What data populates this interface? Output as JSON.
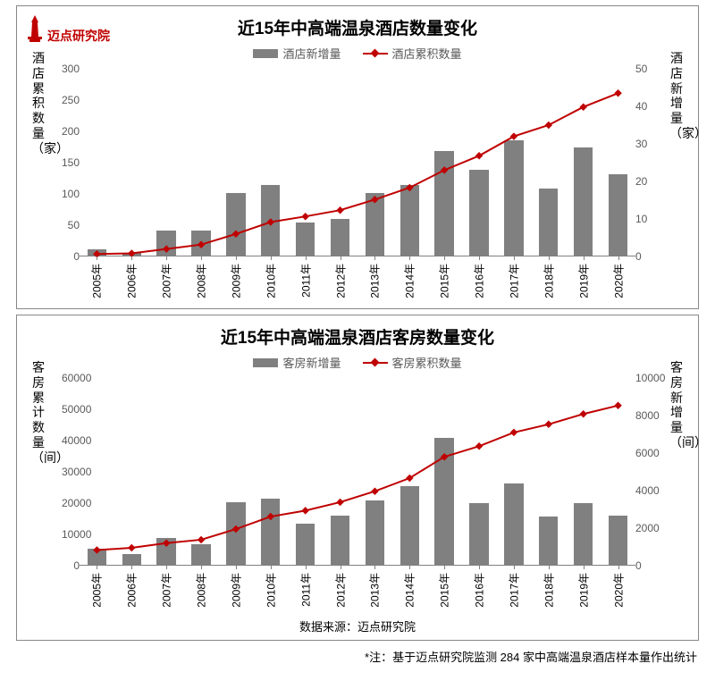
{
  "logo_text": "迈点研究院",
  "footnote": "*注：基于迈点研究院监测 284 家中高端温泉酒店样本量作出统计",
  "source_label": "数据来源：迈点研究院",
  "colors": {
    "bar": "#808080",
    "line": "#c00000",
    "axis": "#808080",
    "text": "#000000",
    "legend_text": "#595959",
    "background": "#ffffff"
  },
  "chart1": {
    "title": "近15年中高端温泉酒店数量变化",
    "legend_bar": "酒店新增量",
    "legend_line": "酒店累积数量",
    "y_left_label": "酒店累积数量（家）",
    "y_right_label": "酒店新增量（家）",
    "categories": [
      "2005年",
      "2006年",
      "2007年",
      "2008年",
      "2009年",
      "2010年",
      "2011年",
      "2012年",
      "2013年",
      "2014年",
      "2015年",
      "2016年",
      "2017年",
      "2018年",
      "2019年",
      "2020年"
    ],
    "bar_values": [
      2,
      1,
      7,
      7,
      17,
      19,
      9,
      10,
      17,
      19,
      28,
      23,
      31,
      18,
      29,
      22
    ],
    "line_values": [
      4,
      5,
      12,
      19,
      36,
      55,
      64,
      74,
      91,
      110,
      138,
      161,
      192,
      210,
      239,
      261
    ],
    "y_left": {
      "min": 0,
      "max": 300,
      "step": 50
    },
    "y_right": {
      "min": 0,
      "max": 50,
      "step": 10
    },
    "bar_width": 0.55,
    "marker_size": 6
  },
  "chart2": {
    "title": "近15年中高端温泉酒店客房数量变化",
    "legend_bar": "客房新增量",
    "legend_line": "客房累积数量",
    "y_left_label": "客房累计数量（间）",
    "y_right_label": "客房新增量（间）",
    "categories": [
      "2005年",
      "2006年",
      "2007年",
      "2008年",
      "2009年",
      "2010年",
      "2011年",
      "2012年",
      "2013年",
      "2014年",
      "2015年",
      "2016年",
      "2017年",
      "2018年",
      "2019年",
      "2020年"
    ],
    "bar_values": [
      900,
      600,
      1500,
      1150,
      3400,
      3550,
      2250,
      2650,
      3500,
      4250,
      6800,
      3350,
      4400,
      2600,
      3350,
      2650
    ],
    "line_values": [
      5000,
      5700,
      7200,
      8300,
      11700,
      15700,
      17600,
      20300,
      23800,
      28000,
      34800,
      38200,
      42600,
      45200,
      48500,
      51200
    ],
    "y_left": {
      "min": 0,
      "max": 60000,
      "step": 10000
    },
    "y_right": {
      "min": 0,
      "max": 10000,
      "step": 2000
    },
    "bar_width": 0.55,
    "marker_size": 6
  }
}
